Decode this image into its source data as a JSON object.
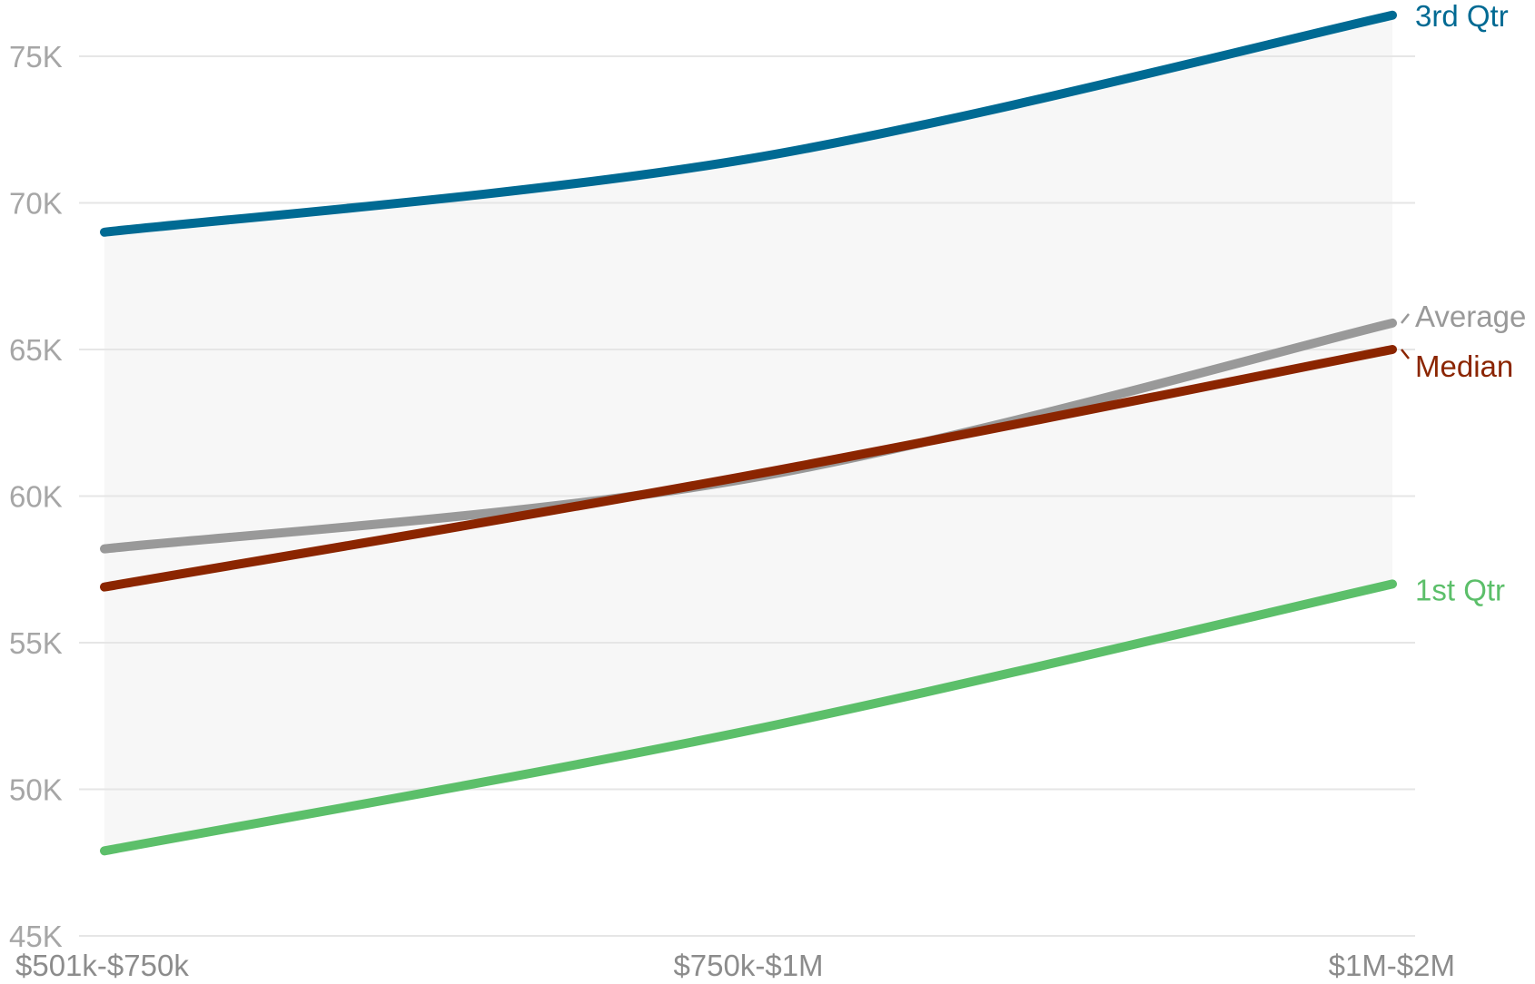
{
  "chart_data": {
    "type": "line",
    "categories": [
      "$501k-$750k",
      "$750k-$1M",
      "$1M-$2M"
    ],
    "ylim": [
      45000,
      77000
    ],
    "yticks": [
      45000,
      50000,
      55000,
      60000,
      65000,
      70000,
      75000
    ],
    "ytick_labels": [
      "45K",
      "50K",
      "55K",
      "60K",
      "65K",
      "70K",
      "75K"
    ],
    "grid": true,
    "band": {
      "lower_series": "1st Qtr",
      "upper_series": "3rd Qtr",
      "color": "#f7f7f7"
    },
    "series": [
      {
        "name": "3rd Qtr",
        "values": [
          69000,
          71500,
          76400
        ],
        "color": "#006a93"
      },
      {
        "name": "Average",
        "values": [
          58200,
          60600,
          65900
        ],
        "color": "#999999"
      },
      {
        "name": "Median",
        "values": [
          56900,
          60700,
          65000
        ],
        "color": "#8b2500"
      },
      {
        "name": "1st Qtr",
        "values": [
          47900,
          52000,
          57000
        ],
        "color": "#5cbf6a"
      }
    ]
  }
}
